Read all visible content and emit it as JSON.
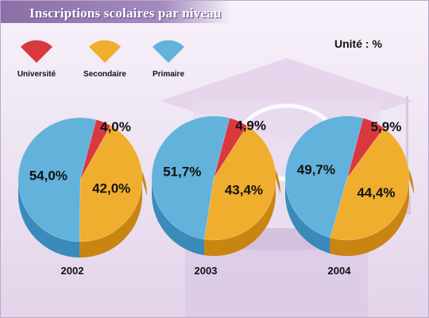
{
  "title": "Inscriptions scolaires par niveau",
  "unit_label": "Unité : %",
  "colors": {
    "universite": "#d9383e",
    "secondaire": "#f0ae2e",
    "primaire": "#62b2dc"
  },
  "legend": [
    {
      "label": "Université",
      "color": "#d9383e"
    },
    {
      "label": "Secondaire",
      "color": "#f0ae2e"
    },
    {
      "label": "Primaire",
      "color": "#62b2dc"
    }
  ],
  "chart_data": [
    {
      "type": "pie",
      "year": "2002",
      "slices": [
        {
          "name": "Université",
          "value": 4.0,
          "label": "4,0%"
        },
        {
          "name": "Secondaire",
          "value": 42.0,
          "label": "42,0%"
        },
        {
          "name": "Primaire",
          "value": 54.0,
          "label": "54,0%"
        }
      ]
    },
    {
      "type": "pie",
      "year": "2003",
      "slices": [
        {
          "name": "Université",
          "value": 4.9,
          "label": "4,9%"
        },
        {
          "name": "Secondaire",
          "value": 43.4,
          "label": "43,4%"
        },
        {
          "name": "Primaire",
          "value": 51.7,
          "label": "51,7%"
        }
      ]
    },
    {
      "type": "pie",
      "year": "2004",
      "slices": [
        {
          "name": "Université",
          "value": 5.9,
          "label": "5,9%"
        },
        {
          "name": "Secondaire",
          "value": 44.4,
          "label": "44,4%"
        },
        {
          "name": "Primaire",
          "value": 49.7,
          "label": "49,7%"
        }
      ]
    }
  ]
}
